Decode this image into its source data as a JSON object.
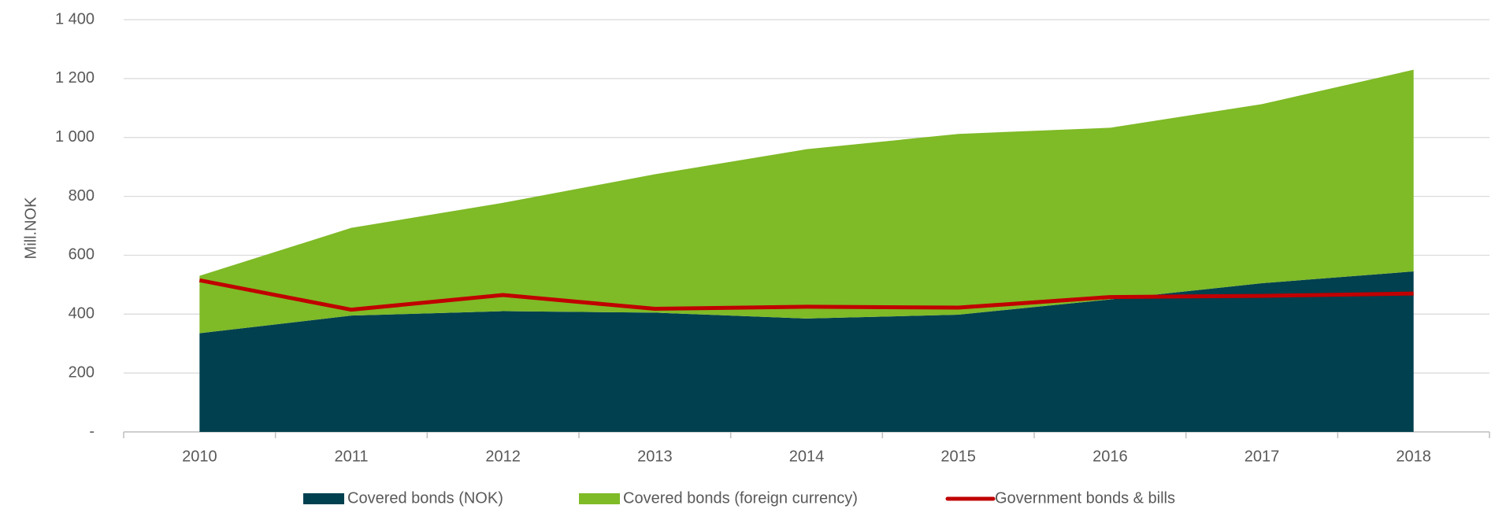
{
  "chart_data": {
    "type": "stacked_area",
    "ylabel": "Mill.NOK",
    "categories": [
      "2010",
      "2011",
      "2012",
      "2013",
      "2014",
      "2015",
      "2016",
      "2017",
      "2018"
    ],
    "series": [
      {
        "name": "Covered bonds (NOK)",
        "color": "#00404f",
        "kind": "area",
        "values": [
          335,
          395,
          410,
          405,
          385,
          398,
          450,
          505,
          545
        ]
      },
      {
        "name": "Covered bonds (foreign currency)",
        "color": "#7fba27",
        "kind": "area",
        "values": [
          195,
          298,
          368,
          470,
          575,
          614,
          583,
          608,
          685
        ]
      },
      {
        "name": "Government bonds & bills",
        "color": "#c00000",
        "kind": "line",
        "values": [
          515,
          415,
          465,
          418,
          425,
          422,
          458,
          462,
          470
        ]
      }
    ],
    "ylim": [
      0,
      1400
    ],
    "yticks": [
      {
        "value": 0,
        "label": "-"
      },
      200,
      400,
      600,
      800,
      {
        "value": 1000,
        "label": "1 000"
      },
      {
        "value": 1200,
        "label": "1 200"
      },
      {
        "value": 1400,
        "label": "1 400"
      }
    ],
    "grid": true,
    "legend": "bottom"
  }
}
